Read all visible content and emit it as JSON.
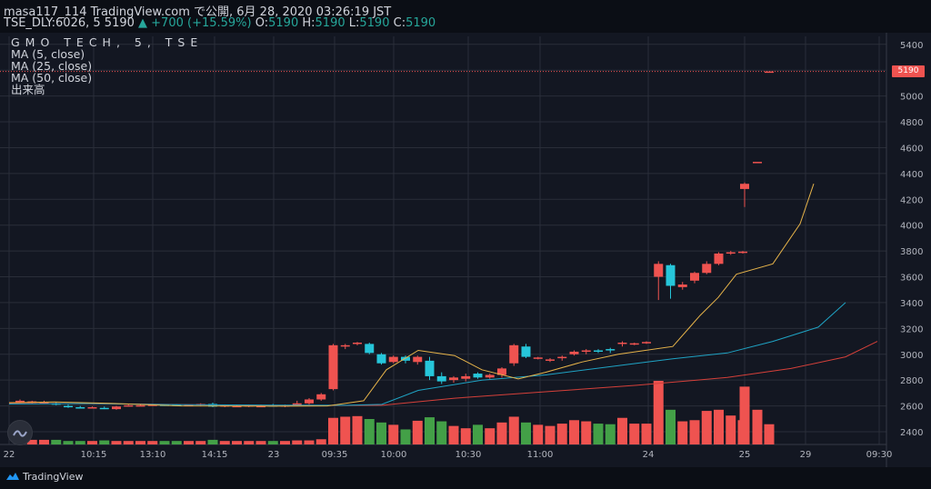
{
  "header": {
    "line1": "masa117_114 TradingView.com で公開, 6月 28, 2020 03:26:19 JST",
    "line2_prefix": "TSE_DLY:6026, 5",
    "line2_last": "5190",
    "line2_change": "▲ +700 (+15.59%)",
    "line2_ohlc_o_label": "O:",
    "line2_o": "5190",
    "line2_h_label": "H:",
    "line2_h": "5190",
    "line2_l_label": "L:",
    "line2_l": "5190",
    "line2_c_label": "C:",
    "line2_c": "5190"
  },
  "legend": {
    "ticker": "GMO TECH, 5, TSE",
    "ma5": "MA (5, close)",
    "ma25": "MA (25, close)",
    "ma50": "MA (50, close)",
    "volume": "出来高"
  },
  "footer": {
    "brand": "TradingView"
  },
  "colors": {
    "up": "#ef5350",
    "down": "#26c6da",
    "vol_up": "#ef5350",
    "vol_down": "#43a047",
    "ma5": "#e6b34a",
    "ma25": "#1fa3c4",
    "ma50": "#d5403a",
    "grid": "#2a2e39",
    "price_line": "#ef5350"
  },
  "chart_data": {
    "type": "candlestick",
    "ylim": [
      2300,
      5500
    ],
    "y_ticks": [
      2400,
      2600,
      2800,
      3000,
      3200,
      3400,
      3600,
      3800,
      4000,
      4200,
      4400,
      4600,
      4800,
      5000,
      5200,
      5400
    ],
    "last_price": "5190",
    "x_ticks": [
      "22",
      "10:15",
      "13:10",
      "14:15",
      "23",
      "09:35",
      "10:00",
      "10:30",
      "11:00",
      "24",
      "25",
      "29",
      "09:30"
    ],
    "candles": [
      {
        "o": 2640,
        "h": 2650,
        "l": 2630,
        "c": 2640
      },
      {
        "o": 2630,
        "h": 2640,
        "l": 2620,
        "c": 2635
      },
      {
        "o": 2630,
        "h": 2640,
        "l": 2620,
        "c": 2630
      },
      {
        "o": 2620,
        "h": 2630,
        "l": 2605,
        "c": 2610
      },
      {
        "o": 2600,
        "h": 2610,
        "l": 2585,
        "c": 2590
      },
      {
        "o": 2590,
        "h": 2600,
        "l": 2580,
        "c": 2585
      },
      {
        "o": 2590,
        "h": 2595,
        "l": 2580,
        "c": 2590
      },
      {
        "o": 2585,
        "h": 2595,
        "l": 2575,
        "c": 2580
      },
      {
        "o": 2575,
        "h": 2600,
        "l": 2570,
        "c": 2595
      },
      {
        "o": 2600,
        "h": 2610,
        "l": 2595,
        "c": 2605
      },
      {
        "o": 2605,
        "h": 2610,
        "l": 2600,
        "c": 2605
      },
      {
        "o": 2605,
        "h": 2615,
        "l": 2600,
        "c": 2610
      },
      {
        "o": 2610,
        "h": 2615,
        "l": 2600,
        "c": 2608
      },
      {
        "o": 2610,
        "h": 2615,
        "l": 2600,
        "c": 2605
      },
      {
        "o": 2605,
        "h": 2610,
        "l": 2600,
        "c": 2608
      },
      {
        "o": 2610,
        "h": 2620,
        "l": 2600,
        "c": 2615
      },
      {
        "o": 2615,
        "h": 2625,
        "l": 2590,
        "c": 2595
      },
      {
        "o": 2595,
        "h": 2610,
        "l": 2590,
        "c": 2605
      },
      {
        "o": 2600,
        "h": 2610,
        "l": 2590,
        "c": 2600
      },
      {
        "o": 2600,
        "h": 2610,
        "l": 2590,
        "c": 2605
      },
      {
        "o": 2600,
        "h": 2610,
        "l": 2590,
        "c": 2600
      },
      {
        "o": 2605,
        "h": 2615,
        "l": 2595,
        "c": 2600
      },
      {
        "o": 2600,
        "h": 2610,
        "l": 2590,
        "c": 2605
      },
      {
        "o": 2605,
        "h": 2640,
        "l": 2600,
        "c": 2620
      },
      {
        "o": 2620,
        "h": 2660,
        "l": 2610,
        "c": 2650
      },
      {
        "o": 2650,
        "h": 2700,
        "l": 2640,
        "c": 2690
      },
      {
        "o": 2730,
        "h": 3080,
        "l": 2720,
        "c": 3070
      },
      {
        "o": 3060,
        "h": 3080,
        "l": 3040,
        "c": 3070
      },
      {
        "o": 3080,
        "h": 3095,
        "l": 3070,
        "c": 3090
      },
      {
        "o": 3080,
        "h": 3090,
        "l": 3000,
        "c": 3010
      },
      {
        "o": 3000,
        "h": 3010,
        "l": 2920,
        "c": 2930
      },
      {
        "o": 2940,
        "h": 2990,
        "l": 2930,
        "c": 2980
      },
      {
        "o": 2980,
        "h": 2990,
        "l": 2930,
        "c": 2950
      },
      {
        "o": 2940,
        "h": 2990,
        "l": 2920,
        "c": 2980
      },
      {
        "o": 2950,
        "h": 2980,
        "l": 2800,
        "c": 2830
      },
      {
        "o": 2830,
        "h": 2860,
        "l": 2770,
        "c": 2790
      },
      {
        "o": 2800,
        "h": 2830,
        "l": 2780,
        "c": 2820
      },
      {
        "o": 2810,
        "h": 2850,
        "l": 2790,
        "c": 2830
      },
      {
        "o": 2850,
        "h": 2860,
        "l": 2810,
        "c": 2820
      },
      {
        "o": 2820,
        "h": 2850,
        "l": 2810,
        "c": 2840
      },
      {
        "o": 2840,
        "h": 2900,
        "l": 2820,
        "c": 2890
      },
      {
        "o": 2930,
        "h": 3080,
        "l": 2910,
        "c": 3070
      },
      {
        "o": 3060,
        "h": 3080,
        "l": 2970,
        "c": 2980
      },
      {
        "o": 2970,
        "h": 2980,
        "l": 2960,
        "c": 2975
      },
      {
        "o": 2960,
        "h": 2970,
        "l": 2940,
        "c": 2960
      },
      {
        "o": 2970,
        "h": 2990,
        "l": 2950,
        "c": 2980
      },
      {
        "o": 3000,
        "h": 3030,
        "l": 2990,
        "c": 3020
      },
      {
        "o": 3020,
        "h": 3040,
        "l": 3000,
        "c": 3030
      },
      {
        "o": 3030,
        "h": 3040,
        "l": 3010,
        "c": 3025
      },
      {
        "o": 3040,
        "h": 3050,
        "l": 3010,
        "c": 3030
      },
      {
        "o": 3080,
        "h": 3100,
        "l": 3060,
        "c": 3090
      },
      {
        "o": 3080,
        "h": 3090,
        "l": 3070,
        "c": 3085
      },
      {
        "o": 3090,
        "h": 3100,
        "l": 3080,
        "c": 3095
      },
      {
        "o": 3600,
        "h": 3720,
        "l": 3420,
        "c": 3700
      },
      {
        "o": 3690,
        "h": 3700,
        "l": 3430,
        "c": 3530
      },
      {
        "o": 3520,
        "h": 3560,
        "l": 3500,
        "c": 3540
      },
      {
        "o": 3570,
        "h": 3640,
        "l": 3550,
        "c": 3630
      },
      {
        "o": 3630,
        "h": 3720,
        "l": 3620,
        "c": 3700
      },
      {
        "o": 3700,
        "h": 3790,
        "l": 3690,
        "c": 3780
      },
      {
        "o": 3780,
        "h": 3800,
        "l": 3770,
        "c": 3790
      },
      {
        "o": 3790,
        "h": 3800,
        "l": 3780,
        "c": 3795
      },
      {
        "o": 4280,
        "h": 4330,
        "l": 4140,
        "c": 4320
      },
      {
        "o": 4490,
        "h": 4490,
        "l": 4490,
        "c": 4490
      },
      {
        "o": 5190,
        "h": 5190,
        "l": 5190,
        "c": 5190
      }
    ],
    "volumes": [
      8,
      8,
      8,
      8,
      6,
      6,
      6,
      7,
      6,
      6,
      6,
      6,
      6,
      6,
      6,
      6,
      8,
      6,
      6,
      6,
      6,
      6,
      6,
      7,
      7,
      9,
      46,
      48,
      49,
      44,
      38,
      34,
      26,
      41,
      47,
      40,
      32,
      28,
      34,
      28,
      38,
      48,
      38,
      34,
      32,
      36,
      42,
      40,
      36,
      35,
      46,
      36,
      36,
      110,
      60,
      40,
      42,
      58,
      60,
      50,
      42,
      100,
      60,
      35
    ],
    "ma5": [
      [
        10,
        2625
      ],
      [
        60,
        2630
      ],
      [
        120,
        2620
      ],
      [
        200,
        2600
      ],
      [
        300,
        2598
      ],
      [
        360,
        2600
      ],
      [
        400,
        2640
      ],
      [
        425,
        2880
      ],
      [
        460,
        3030
      ],
      [
        500,
        2990
      ],
      [
        530,
        2880
      ],
      [
        570,
        2810
      ],
      [
        600,
        2860
      ],
      [
        640,
        2940
      ],
      [
        680,
        3000
      ],
      [
        740,
        3060
      ],
      [
        770,
        3300
      ],
      [
        790,
        3440
      ],
      [
        810,
        3620
      ],
      [
        850,
        3700
      ],
      [
        880,
        4010
      ],
      [
        895,
        4320
      ]
    ],
    "ma25": [
      [
        10,
        2615
      ],
      [
        100,
        2618
      ],
      [
        200,
        2610
      ],
      [
        300,
        2606
      ],
      [
        380,
        2605
      ],
      [
        420,
        2612
      ],
      [
        460,
        2720
      ],
      [
        530,
        2800
      ],
      [
        600,
        2840
      ],
      [
        700,
        2930
      ],
      [
        740,
        2965
      ],
      [
        800,
        3010
      ],
      [
        850,
        3100
      ],
      [
        900,
        3210
      ],
      [
        930,
        3400
      ]
    ],
    "ma50": [
      [
        10,
        2620
      ],
      [
        150,
        2615
      ],
      [
        300,
        2603
      ],
      [
        420,
        2605
      ],
      [
        500,
        2660
      ],
      [
        600,
        2710
      ],
      [
        700,
        2760
      ],
      [
        800,
        2820
      ],
      [
        870,
        2890
      ],
      [
        930,
        2980
      ],
      [
        965,
        3100
      ]
    ]
  }
}
